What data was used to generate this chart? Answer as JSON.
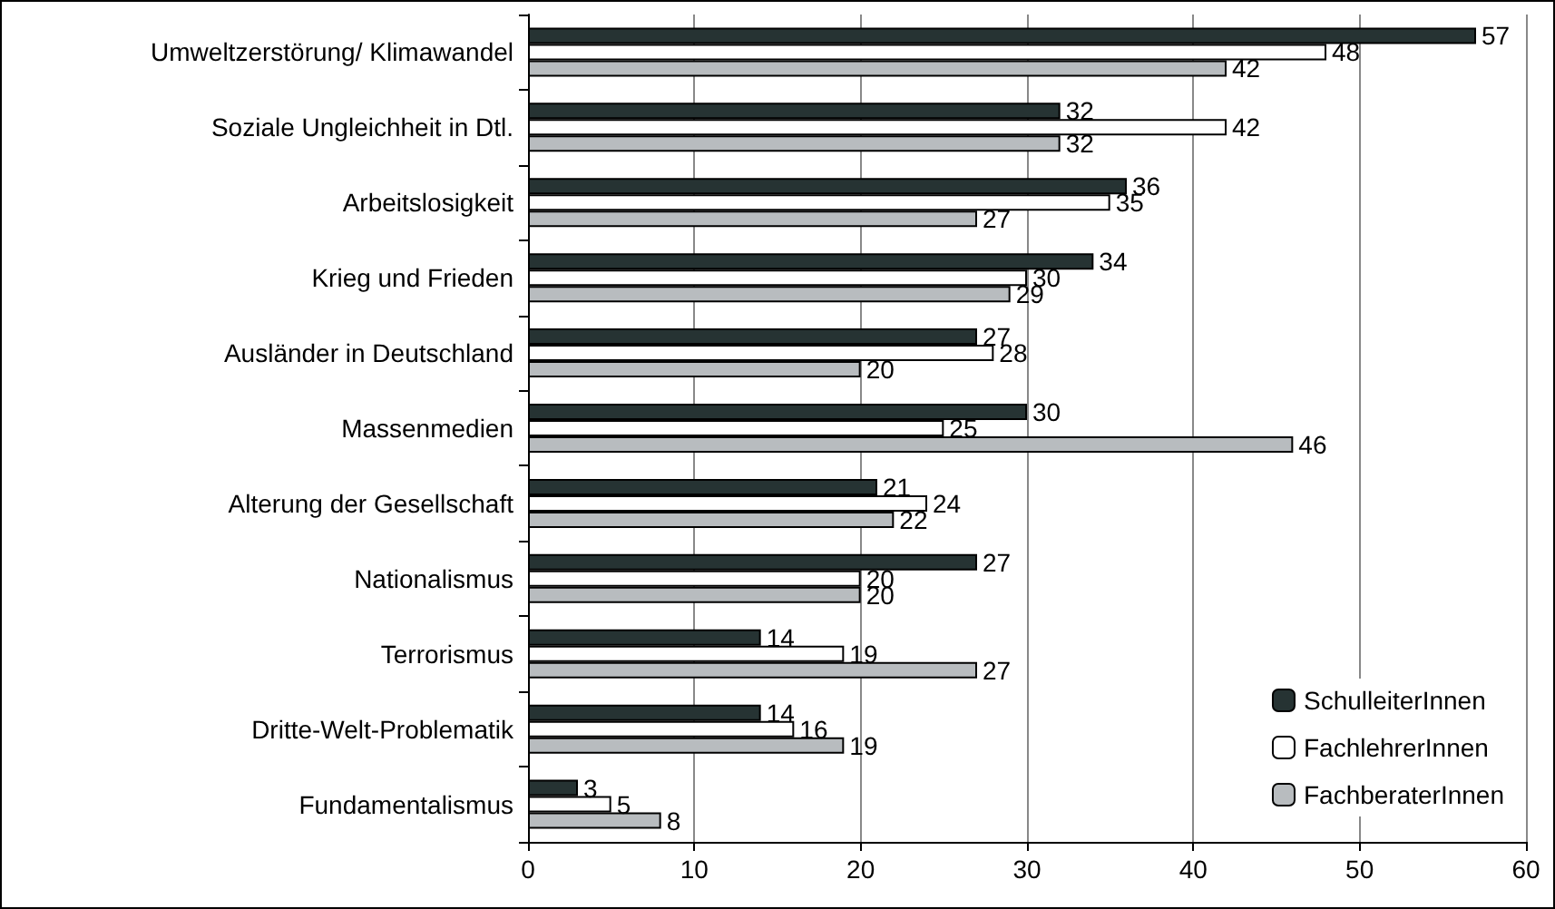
{
  "chart_data": {
    "type": "bar",
    "orientation": "horizontal",
    "categories": [
      "Umweltzerstörung/ Klimawandel",
      "Soziale Ungleichheit in Dtl.",
      "Arbeitslosigkeit",
      "Krieg und Frieden",
      "Ausländer in Deutschland",
      "Massenmedien",
      "Alterung der Gesellschaft",
      "Nationalismus",
      "Terrorismus",
      "Dritte-Welt-Problematik",
      "Fundamentalismus"
    ],
    "series": [
      {
        "name": "SchulleiterInnen",
        "color": "#263333",
        "values": [
          57,
          32,
          36,
          34,
          27,
          30,
          21,
          27,
          14,
          14,
          3
        ]
      },
      {
        "name": "FachlehrerInnen",
        "color": "#ffffff",
        "values": [
          48,
          42,
          35,
          30,
          28,
          25,
          24,
          20,
          19,
          16,
          5
        ]
      },
      {
        "name": "FachberaterInnen",
        "color": "#b8bcbf",
        "values": [
          42,
          32,
          27,
          29,
          20,
          46,
          22,
          20,
          27,
          19,
          8
        ]
      }
    ],
    "xlim": [
      0,
      60
    ],
    "xticks": [
      0,
      10,
      20,
      30,
      40,
      50,
      60
    ],
    "grid": "x",
    "legend": "bottom right",
    "data_labels": true
  }
}
